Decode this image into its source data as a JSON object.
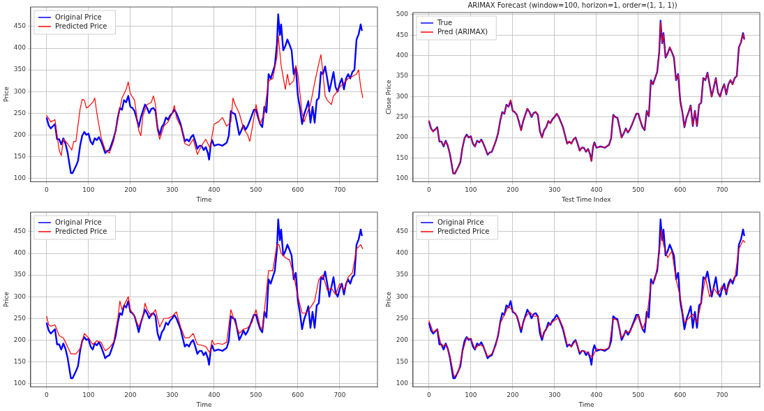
{
  "chart_data": [
    {
      "type": "line",
      "xlabel": "Time",
      "ylabel": "Price",
      "xlim": [
        -38,
        790
      ],
      "ylim": [
        92,
        495
      ],
      "xticks": [
        0,
        100,
        200,
        300,
        400,
        500,
        600,
        700
      ],
      "yticks": [
        100,
        150,
        200,
        250,
        300,
        350,
        400,
        450
      ],
      "grid": true,
      "legend": "top left",
      "x": [
        0,
        5,
        10,
        15,
        20,
        25,
        30,
        35,
        40,
        45,
        50,
        55,
        58,
        62,
        70,
        75,
        80,
        85,
        90,
        95,
        100,
        105,
        110,
        115,
        120,
        125,
        130,
        135,
        140,
        145,
        150,
        155,
        160,
        165,
        170,
        175,
        180,
        185,
        190,
        195,
        200,
        205,
        210,
        215,
        220,
        225,
        230,
        235,
        240,
        245,
        250,
        255,
        260,
        265,
        270,
        275,
        280,
        285,
        290,
        295,
        300,
        305,
        310,
        315,
        320,
        325,
        330,
        335,
        340,
        345,
        350,
        355,
        360,
        365,
        370,
        375,
        380,
        385,
        388,
        392,
        395,
        400,
        410,
        420,
        430,
        435,
        440,
        445,
        450,
        455,
        460,
        465,
        470,
        475,
        480,
        485,
        490,
        495,
        500,
        505,
        510,
        515,
        520,
        525,
        530,
        535,
        540,
        545,
        550,
        553,
        557,
        560,
        565,
        570,
        575,
        580,
        585,
        590,
        595,
        600,
        605,
        610,
        615,
        620,
        625,
        630,
        635,
        640,
        645,
        650,
        655,
        660,
        665,
        670,
        675,
        680,
        685,
        690,
        695,
        700,
        705,
        710,
        715,
        720,
        725,
        730,
        735,
        740,
        745,
        750,
        753
      ],
      "series": [
        {
          "name": "Original Price",
          "color": "#0000ff",
          "values": [
            240,
            222,
            215,
            220,
            225,
            190,
            190,
            178,
            192,
            180,
            160,
            130,
            112,
            112,
            128,
            140,
            175,
            198,
            207,
            200,
            203,
            185,
            178,
            192,
            188,
            195,
            185,
            172,
            158,
            163,
            165,
            178,
            192,
            210,
            240,
            262,
            258,
            280,
            275,
            290,
            265,
            262,
            255,
            238,
            218,
            240,
            255,
            270,
            262,
            250,
            260,
            262,
            255,
            215,
            200,
            218,
            225,
            240,
            235,
            245,
            250,
            258,
            250,
            238,
            225,
            205,
            185,
            190,
            185,
            195,
            200,
            185,
            168,
            175,
            175,
            165,
            172,
            158,
            143,
            178,
            188,
            175,
            178,
            175,
            182,
            198,
            255,
            250,
            248,
            225,
            200,
            210,
            222,
            212,
            220,
            232,
            245,
            258,
            258,
            240,
            225,
            218,
            265,
            252,
            340,
            330,
            345,
            360,
            410,
            478,
            430,
            455,
            395,
            405,
            420,
            408,
            395,
            340,
            355,
            290,
            262,
            225,
            248,
            262,
            278,
            228,
            265,
            228,
            280,
            285,
            345,
            340,
            358,
            330,
            300,
            322,
            345,
            310,
            300,
            318,
            330,
            305,
            330,
            340,
            330,
            345,
            350,
            420,
            432,
            455,
            440
          ]
        },
        {
          "name": "Predicted Price",
          "color": "#ff0000",
          "x": [
            0,
            10,
            20,
            30,
            35,
            40,
            50,
            60,
            65,
            70,
            80,
            85,
            90,
            95,
            100,
            110,
            115,
            120,
            130,
            140,
            150,
            160,
            170,
            180,
            190,
            195,
            200,
            210,
            220,
            225,
            230,
            240,
            250,
            255,
            260,
            265,
            270,
            280,
            290,
            300,
            305,
            310,
            320,
            330,
            340,
            350,
            360,
            370,
            380,
            390,
            400,
            410,
            420,
            430,
            440,
            445,
            450,
            460,
            470,
            480,
            485,
            490,
            500,
            510,
            520,
            530,
            540,
            550,
            553,
            560,
            570,
            575,
            580,
            590,
            595,
            600,
            610,
            615,
            620,
            630,
            640,
            650,
            655,
            660,
            665,
            670,
            680,
            685,
            690,
            700,
            710,
            720,
            730,
            740,
            745,
            750,
            755
          ],
          "values": [
            245,
            230,
            235,
            165,
            152,
            190,
            180,
            165,
            185,
            185,
            260,
            282,
            280,
            262,
            265,
            275,
            285,
            250,
            195,
            165,
            158,
            185,
            235,
            285,
            305,
            322,
            295,
            280,
            210,
            198,
            245,
            270,
            275,
            290,
            270,
            210,
            190,
            220,
            230,
            250,
            268,
            240,
            220,
            180,
            175,
            190,
            155,
            175,
            190,
            170,
            225,
            230,
            240,
            220,
            230,
            285,
            270,
            250,
            215,
            200,
            185,
            210,
            270,
            225,
            250,
            325,
            330,
            380,
            430,
            360,
            305,
            340,
            315,
            325,
            360,
            340,
            250,
            230,
            245,
            270,
            320,
            365,
            385,
            340,
            290,
            280,
            270,
            290,
            295,
            310,
            320,
            330,
            335,
            340,
            350,
            310,
            285
          ]
        }
      ]
    },
    {
      "type": "line",
      "title": "ARIMAX Forecast (window=100, horizon=1, order=(1, 1, 1))",
      "xlabel": "Test Time Index",
      "ylabel": "Close Price",
      "xlim": [
        -38,
        790
      ],
      "ylim": [
        92,
        505
      ],
      "xticks": [
        0,
        100,
        200,
        300,
        400,
        500,
        600,
        700
      ],
      "yticks": [
        100,
        150,
        200,
        250,
        300,
        350,
        400,
        450,
        500
      ],
      "grid": true,
      "legend": "top left",
      "x": [
        0,
        5,
        10,
        15,
        20,
        25,
        30,
        35,
        40,
        45,
        50,
        55,
        58,
        62,
        70,
        75,
        80,
        85,
        90,
        95,
        100,
        105,
        110,
        115,
        120,
        125,
        130,
        135,
        140,
        145,
        150,
        155,
        160,
        165,
        170,
        175,
        180,
        185,
        190,
        195,
        200,
        205,
        210,
        215,
        220,
        225,
        230,
        235,
        240,
        245,
        250,
        255,
        260,
        265,
        270,
        275,
        280,
        285,
        290,
        295,
        300,
        305,
        310,
        315,
        320,
        325,
        330,
        335,
        340,
        345,
        350,
        355,
        360,
        365,
        370,
        375,
        380,
        385,
        388,
        392,
        395,
        400,
        410,
        420,
        430,
        435,
        440,
        445,
        450,
        455,
        460,
        465,
        470,
        475,
        480,
        485,
        490,
        495,
        500,
        505,
        510,
        515,
        520,
        525,
        530,
        535,
        540,
        545,
        550,
        553,
        557,
        560,
        565,
        570,
        575,
        580,
        585,
        590,
        595,
        600,
        605,
        610,
        615,
        620,
        625,
        630,
        635,
        640,
        645,
        650,
        655,
        660,
        665,
        670,
        675,
        680,
        685,
        690,
        695,
        700,
        705,
        710,
        715,
        720,
        725,
        730,
        735,
        740,
        745,
        750,
        753
      ],
      "series": [
        {
          "name": "True",
          "color": "#0000ff",
          "values": [
            240,
            222,
            215,
            220,
            225,
            190,
            190,
            178,
            192,
            180,
            160,
            130,
            112,
            112,
            128,
            140,
            175,
            198,
            207,
            200,
            203,
            185,
            178,
            192,
            188,
            195,
            185,
            172,
            158,
            163,
            165,
            178,
            192,
            210,
            240,
            262,
            258,
            280,
            275,
            290,
            265,
            262,
            255,
            238,
            218,
            240,
            255,
            270,
            262,
            250,
            260,
            262,
            255,
            215,
            200,
            218,
            225,
            240,
            235,
            245,
            250,
            258,
            250,
            238,
            225,
            205,
            185,
            190,
            185,
            195,
            200,
            185,
            168,
            175,
            175,
            165,
            172,
            158,
            143,
            178,
            188,
            175,
            178,
            175,
            182,
            198,
            255,
            250,
            248,
            225,
            200,
            210,
            222,
            212,
            220,
            232,
            245,
            258,
            258,
            240,
            225,
            218,
            265,
            252,
            340,
            330,
            345,
            360,
            410,
            485,
            430,
            455,
            395,
            405,
            420,
            408,
            395,
            340,
            355,
            290,
            262,
            225,
            248,
            262,
            278,
            228,
            265,
            228,
            280,
            285,
            345,
            340,
            358,
            330,
            300,
            322,
            345,
            310,
            300,
            318,
            330,
            305,
            330,
            340,
            330,
            345,
            350,
            420,
            432,
            455,
            440
          ]
        },
        {
          "name": "Pred (ARIMAX)",
          "color": "#ff0000",
          "values": [
            242,
            222,
            214,
            221,
            224,
            192,
            189,
            180,
            190,
            182,
            160,
            132,
            113,
            111,
            127,
            142,
            173,
            199,
            205,
            201,
            202,
            186,
            178,
            191,
            189,
            194,
            186,
            171,
            159,
            162,
            166,
            177,
            193,
            209,
            241,
            261,
            259,
            279,
            276,
            292,
            264,
            263,
            254,
            239,
            217,
            241,
            254,
            271,
            261,
            251,
            259,
            263,
            254,
            216,
            199,
            219,
            224,
            241,
            234,
            246,
            249,
            259,
            249,
            239,
            224,
            206,
            184,
            191,
            184,
            196,
            199,
            186,
            167,
            176,
            174,
            166,
            171,
            159,
            142,
            179,
            187,
            176,
            177,
            176,
            181,
            199,
            254,
            251,
            247,
            226,
            199,
            211,
            221,
            213,
            219,
            233,
            244,
            259,
            257,
            241,
            224,
            219,
            264,
            253,
            338,
            331,
            344,
            361,
            408,
            482,
            431,
            453,
            396,
            404,
            421,
            407,
            396,
            341,
            354,
            291,
            261,
            226,
            247,
            263,
            277,
            229,
            264,
            229,
            279,
            286,
            344,
            341,
            357,
            331,
            299,
            323,
            344,
            311,
            299,
            319,
            329,
            306,
            329,
            341,
            329,
            346,
            349,
            418,
            433,
            453,
            438
          ]
        }
      ]
    },
    {
      "type": "line",
      "xlabel": "Time",
      "ylabel": "Price",
      "xlim": [
        -38,
        790
      ],
      "ylim": [
        92,
        495
      ],
      "xticks": [
        0,
        100,
        200,
        300,
        400,
        500,
        600,
        700
      ],
      "yticks": [
        100,
        150,
        200,
        250,
        300,
        350,
        400,
        450
      ],
      "grid": true,
      "legend": "top left",
      "x": [
        0,
        5,
        10,
        15,
        20,
        25,
        30,
        35,
        40,
        45,
        50,
        55,
        58,
        62,
        70,
        75,
        80,
        85,
        90,
        95,
        100,
        105,
        110,
        115,
        120,
        125,
        130,
        135,
        140,
        145,
        150,
        155,
        160,
        165,
        170,
        175,
        180,
        185,
        190,
        195,
        200,
        205,
        210,
        215,
        220,
        225,
        230,
        235,
        240,
        245,
        250,
        255,
        260,
        265,
        270,
        275,
        280,
        285,
        290,
        295,
        300,
        305,
        310,
        315,
        320,
        325,
        330,
        335,
        340,
        345,
        350,
        355,
        360,
        365,
        370,
        375,
        380,
        385,
        388,
        392,
        395,
        400,
        410,
        420,
        430,
        435,
        440,
        445,
        450,
        455,
        460,
        465,
        470,
        475,
        480,
        485,
        490,
        495,
        500,
        505,
        510,
        515,
        520,
        525,
        530,
        535,
        540,
        545,
        550,
        553,
        557,
        560,
        565,
        570,
        575,
        580,
        585,
        590,
        595,
        600,
        605,
        610,
        615,
        620,
        625,
        630,
        635,
        640,
        645,
        650,
        655,
        660,
        665,
        670,
        675,
        680,
        685,
        690,
        695,
        700,
        705,
        710,
        715,
        720,
        725,
        730,
        735,
        740,
        745,
        750,
        753
      ],
      "series": [
        {
          "name": "Original Price",
          "color": "#0000ff",
          "values": [
            240,
            222,
            215,
            220,
            225,
            190,
            190,
            178,
            192,
            180,
            160,
            130,
            112,
            112,
            128,
            140,
            175,
            198,
            207,
            200,
            203,
            185,
            178,
            192,
            188,
            195,
            185,
            172,
            158,
            163,
            165,
            178,
            192,
            210,
            240,
            262,
            258,
            280,
            275,
            290,
            265,
            262,
            255,
            238,
            218,
            240,
            255,
            270,
            262,
            250,
            260,
            262,
            255,
            215,
            200,
            218,
            225,
            240,
            235,
            245,
            250,
            258,
            250,
            238,
            225,
            205,
            185,
            190,
            185,
            195,
            200,
            185,
            168,
            175,
            175,
            165,
            172,
            158,
            143,
            178,
            188,
            175,
            178,
            175,
            182,
            198,
            255,
            250,
            248,
            225,
            200,
            210,
            222,
            212,
            220,
            232,
            245,
            258,
            258,
            240,
            225,
            218,
            265,
            252,
            340,
            330,
            345,
            360,
            410,
            478,
            430,
            455,
            395,
            405,
            420,
            408,
            395,
            340,
            355,
            290,
            262,
            225,
            248,
            262,
            278,
            228,
            265,
            228,
            280,
            285,
            345,
            340,
            358,
            330,
            300,
            322,
            345,
            310,
            300,
            318,
            330,
            305,
            330,
            340,
            330,
            345,
            350,
            420,
            432,
            455,
            440
          ]
        },
        {
          "name": "Predicted Price",
          "color": "#ff0000",
          "x": [
            0,
            5,
            10,
            20,
            30,
            40,
            50,
            58,
            70,
            80,
            90,
            100,
            110,
            120,
            130,
            140,
            150,
            160,
            170,
            175,
            180,
            190,
            195,
            200,
            210,
            220,
            230,
            235,
            240,
            250,
            260,
            270,
            280,
            290,
            300,
            310,
            320,
            330,
            340,
            350,
            360,
            370,
            380,
            390,
            395,
            400,
            410,
            420,
            430,
            440,
            450,
            460,
            470,
            480,
            490,
            500,
            510,
            515,
            520,
            530,
            540,
            550,
            555,
            560,
            570,
            580,
            590,
            600,
            610,
            620,
            630,
            640,
            650,
            660,
            670,
            680,
            690,
            700,
            710,
            720,
            730,
            740,
            750,
            755
          ],
          "values": [
            255,
            235,
            232,
            235,
            210,
            205,
            185,
            168,
            168,
            180,
            215,
            205,
            190,
            198,
            195,
            175,
            182,
            195,
            250,
            290,
            270,
            290,
            300,
            270,
            255,
            230,
            255,
            285,
            270,
            255,
            270,
            230,
            250,
            250,
            255,
            265,
            230,
            205,
            205,
            215,
            190,
            188,
            185,
            170,
            200,
            190,
            192,
            190,
            195,
            270,
            240,
            215,
            225,
            228,
            240,
            270,
            230,
            225,
            268,
            360,
            360,
            420,
            420,
            400,
            390,
            385,
            350,
            300,
            262,
            262,
            275,
            290,
            340,
            350,
            315,
            320,
            305,
            330,
            315,
            345,
            355,
            410,
            420,
            410
          ]
        }
      ]
    },
    {
      "type": "line",
      "xlabel": "Time",
      "ylabel": "Price",
      "xlim": [
        -38,
        790
      ],
      "ylim": [
        92,
        495
      ],
      "xticks": [
        0,
        100,
        200,
        300,
        400,
        500,
        600,
        700
      ],
      "yticks": [
        100,
        150,
        200,
        250,
        300,
        350,
        400,
        450
      ],
      "grid": true,
      "legend": "top left",
      "x": [
        0,
        5,
        10,
        15,
        20,
        25,
        30,
        35,
        40,
        45,
        50,
        55,
        58,
        62,
        70,
        75,
        80,
        85,
        90,
        95,
        100,
        105,
        110,
        115,
        120,
        125,
        130,
        135,
        140,
        145,
        150,
        155,
        160,
        165,
        170,
        175,
        180,
        185,
        190,
        195,
        200,
        205,
        210,
        215,
        220,
        225,
        230,
        235,
        240,
        245,
        250,
        255,
        260,
        265,
        270,
        275,
        280,
        285,
        290,
        295,
        300,
        305,
        310,
        315,
        320,
        325,
        330,
        335,
        340,
        345,
        350,
        355,
        360,
        365,
        370,
        375,
        380,
        385,
        388,
        392,
        395,
        400,
        410,
        420,
        430,
        435,
        440,
        445,
        450,
        455,
        460,
        465,
        470,
        475,
        480,
        485,
        490,
        495,
        500,
        505,
        510,
        515,
        520,
        525,
        530,
        535,
        540,
        545,
        550,
        553,
        557,
        560,
        565,
        570,
        575,
        580,
        585,
        590,
        595,
        600,
        605,
        610,
        615,
        620,
        625,
        630,
        635,
        640,
        645,
        650,
        655,
        660,
        665,
        670,
        675,
        680,
        685,
        690,
        695,
        700,
        705,
        710,
        715,
        720,
        725,
        730,
        735,
        740,
        745,
        750,
        753
      ],
      "series": [
        {
          "name": "Original Price",
          "color": "#0000ff",
          "values": [
            240,
            222,
            215,
            220,
            225,
            190,
            190,
            178,
            192,
            180,
            160,
            130,
            112,
            112,
            128,
            140,
            175,
            198,
            207,
            200,
            203,
            185,
            178,
            192,
            188,
            195,
            185,
            172,
            158,
            163,
            165,
            178,
            192,
            210,
            240,
            262,
            258,
            280,
            275,
            290,
            265,
            262,
            255,
            238,
            218,
            240,
            255,
            270,
            262,
            250,
            260,
            262,
            255,
            215,
            200,
            218,
            225,
            240,
            235,
            245,
            250,
            258,
            250,
            238,
            225,
            205,
            185,
            190,
            185,
            195,
            200,
            185,
            168,
            175,
            175,
            165,
            172,
            158,
            143,
            178,
            188,
            175,
            178,
            175,
            182,
            198,
            255,
            250,
            248,
            225,
            200,
            210,
            222,
            212,
            220,
            232,
            245,
            258,
            258,
            240,
            225,
            218,
            265,
            252,
            340,
            330,
            345,
            360,
            410,
            478,
            430,
            455,
            395,
            405,
            420,
            408,
            395,
            340,
            355,
            290,
            262,
            225,
            248,
            262,
            278,
            228,
            265,
            228,
            280,
            285,
            345,
            340,
            358,
            330,
            300,
            322,
            345,
            310,
            300,
            318,
            330,
            305,
            330,
            340,
            330,
            345,
            350,
            420,
            432,
            455,
            440
          ]
        },
        {
          "name": "Predicted Price",
          "color": "#ff0000",
          "x": [
            0,
            10,
            20,
            30,
            40,
            50,
            60,
            70,
            80,
            90,
            100,
            110,
            120,
            130,
            140,
            150,
            160,
            170,
            180,
            190,
            200,
            210,
            220,
            230,
            240,
            250,
            260,
            270,
            280,
            290,
            300,
            310,
            320,
            330,
            340,
            350,
            360,
            370,
            380,
            390,
            400,
            410,
            420,
            430,
            440,
            450,
            460,
            470,
            480,
            490,
            500,
            510,
            520,
            530,
            540,
            550,
            555,
            560,
            570,
            580,
            590,
            600,
            610,
            620,
            630,
            640,
            650,
            660,
            670,
            680,
            690,
            700,
            710,
            720,
            730,
            740,
            750,
            755
          ],
          "values": [
            245,
            218,
            225,
            185,
            190,
            165,
            115,
            125,
            172,
            205,
            202,
            180,
            190,
            185,
            162,
            168,
            188,
            238,
            258,
            278,
            268,
            255,
            225,
            252,
            265,
            255,
            255,
            205,
            225,
            238,
            245,
            252,
            230,
            190,
            185,
            198,
            172,
            175,
            170,
            160,
            180,
            178,
            178,
            182,
            250,
            245,
            205,
            220,
            218,
            240,
            258,
            225,
            250,
            330,
            340,
            400,
            455,
            420,
            390,
            405,
            340,
            300,
            240,
            250,
            260,
            240,
            285,
            345,
            300,
            320,
            305,
            325,
            310,
            335,
            340,
            410,
            430,
            425
          ]
        }
      ]
    }
  ]
}
